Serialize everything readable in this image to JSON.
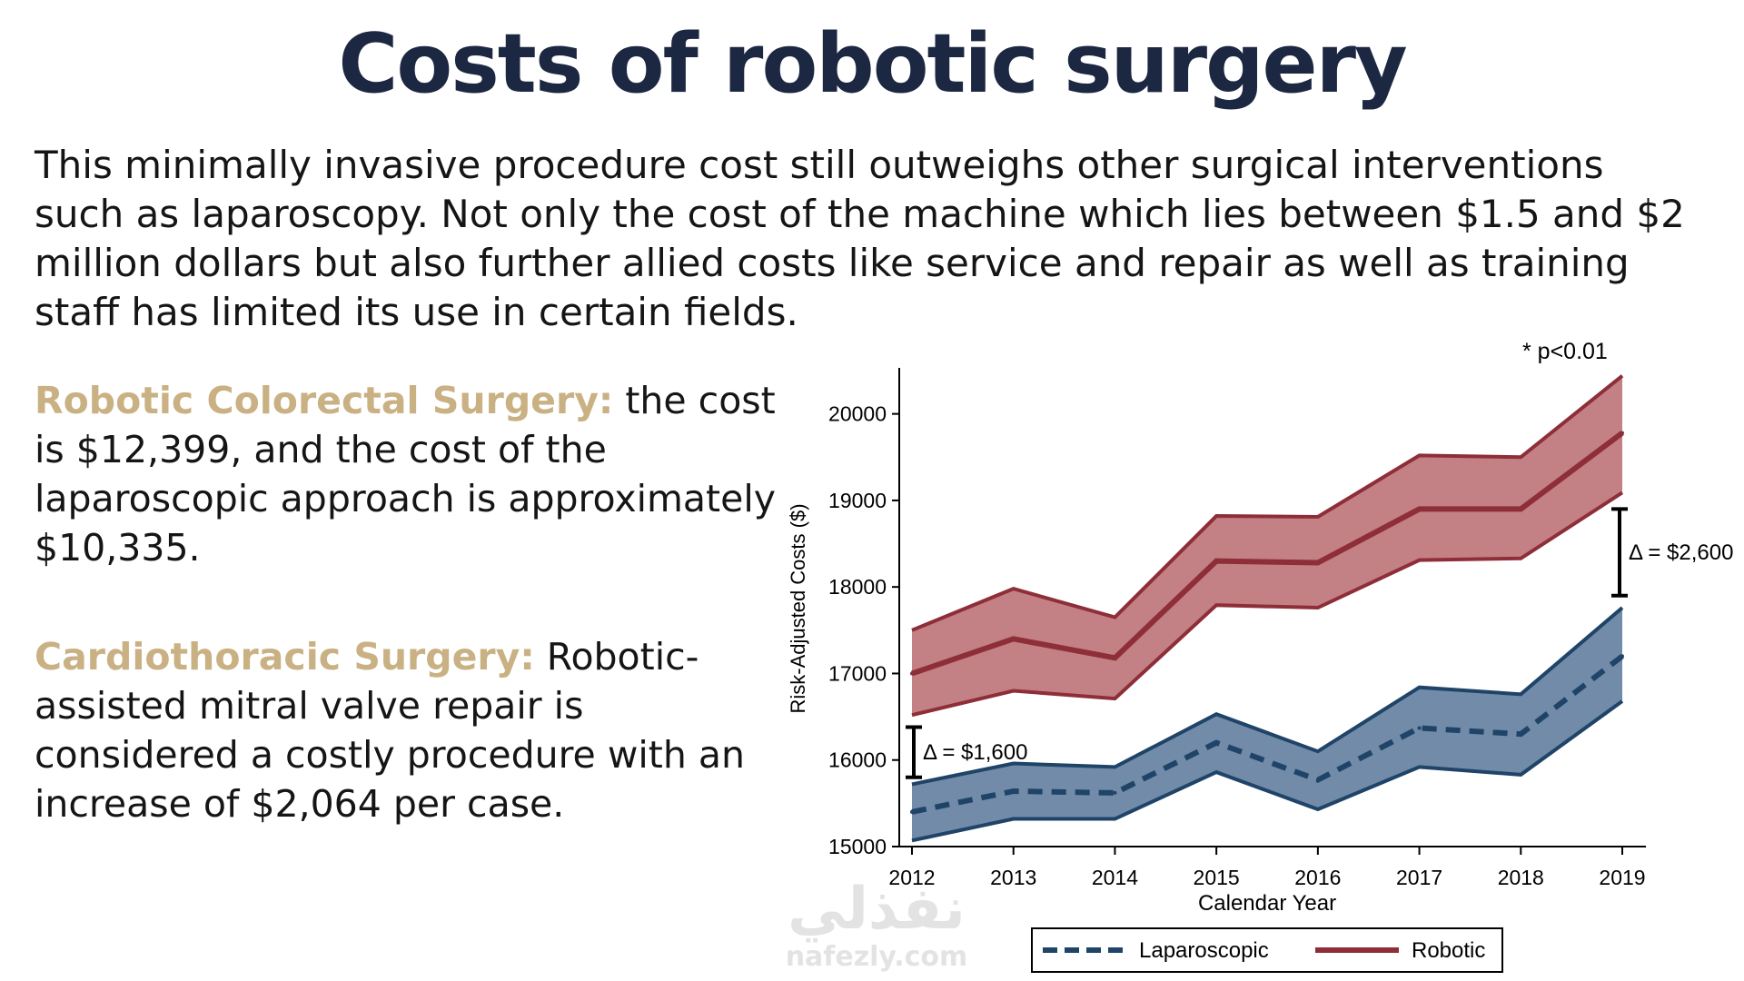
{
  "slide": {
    "title": "Costs of robotic surgery",
    "intro": "This minimally invasive procedure cost still outweighs other surgical interventions such as laparoscopy. Not only the cost of the machine which lies between $1.5 and $2 million dollars but also further allied costs like service and repair as well as training staff has limited its use in certain fields.",
    "sections": [
      {
        "heading": "Robotic Colorectal Surgery:",
        "text": " the cost is $12,399, and the cost of the laparoscopic approach is approximately $10,335."
      },
      {
        "heading": "Cardiothoracic Surgery:",
        "text": " Robotic-assisted mitral valve repair is considered a costly procedure with an increase of $2,064 per case."
      }
    ],
    "watermark": {
      "arabic": "نفذلي",
      "latin": "nafezly.com"
    }
  },
  "chart_data": {
    "type": "line",
    "xlabel": "Calendar Year",
    "ylabel": "Risk-Adjusted Costs ($)",
    "x": [
      2012,
      2013,
      2014,
      2015,
      2016,
      2017,
      2018,
      2019
    ],
    "xlim": [
      2012,
      2019
    ],
    "ylim": [
      15000,
      20500
    ],
    "yticks": [
      15000,
      16000,
      17000,
      18000,
      19000,
      20000
    ],
    "series": [
      {
        "name": "Robotic",
        "color": "#8e2e38",
        "band_color": "#b96a70",
        "line_style": "solid",
        "mean": [
          17000,
          17400,
          17180,
          18300,
          18280,
          18900,
          18900,
          19780
        ],
        "lower": [
          16520,
          16800,
          16710,
          17790,
          17760,
          18310,
          18330,
          19090
        ],
        "upper": [
          17500,
          17980,
          17650,
          18820,
          18810,
          19520,
          19500,
          20440
        ]
      },
      {
        "name": "Laparoscopic",
        "color": "#1f4468",
        "band_color": "#58779a",
        "line_style": "dashed",
        "mean": [
          15400,
          15640,
          15620,
          16200,
          15770,
          16370,
          16300,
          17200
        ],
        "lower": [
          15070,
          15320,
          15320,
          15860,
          15430,
          15920,
          15830,
          16680
        ],
        "upper": [
          15720,
          15960,
          15920,
          16530,
          16100,
          16840,
          16760,
          17760
        ]
      }
    ],
    "annotations": [
      {
        "text": "* p<0.01"
      },
      {
        "text": "Δ = $1,600",
        "x": 2012,
        "y_low": 15800,
        "y_high": 16380
      },
      {
        "text": "Δ = $2,600",
        "x": 2019,
        "y_low": 17900,
        "y_high": 18900
      }
    ],
    "legend": {
      "placement": "bottom",
      "entries": [
        "Laparoscopic",
        "Robotic"
      ]
    }
  }
}
